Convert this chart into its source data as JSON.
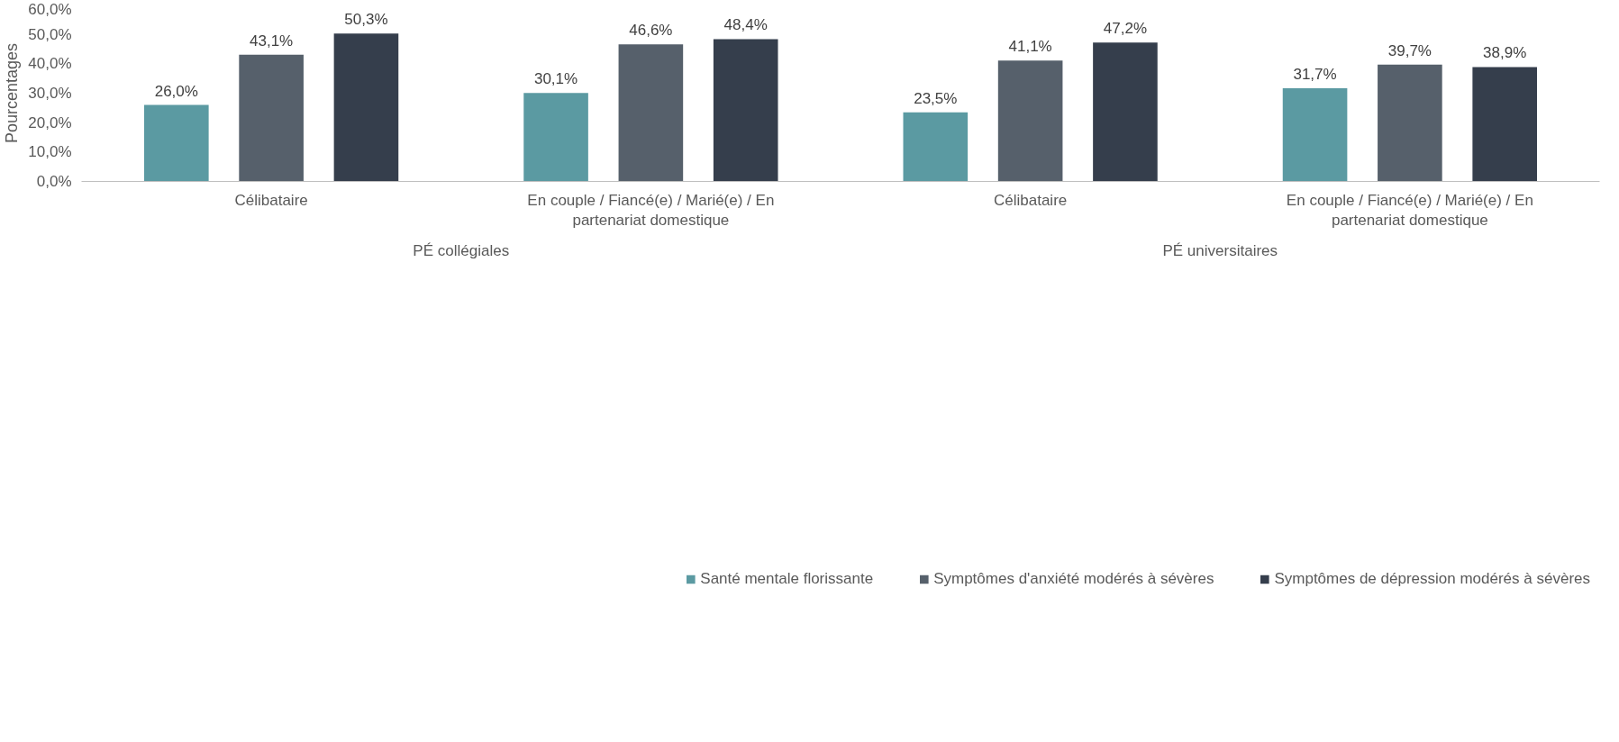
{
  "chart_data": {
    "type": "bar",
    "ylabel": "Pourcentages",
    "categories": [
      "Célibataire",
      "En couple / Fiancé(e) / Marié(e) / En partenariat domestique",
      "Célibataire",
      "En couple / Fiancé(e) / Marié(e) / En partenariat domestique"
    ],
    "annotations": [
      "PÉ collégiales",
      "PÉ universitaires"
    ],
    "series": [
      {
        "name": "Santé mentale florissante",
        "color": "#5b9aa2",
        "values": [
          26.0,
          30.1,
          23.5,
          31.7
        ],
        "value_labels": [
          "26,0%",
          "30,1%",
          "23,5%",
          "31,7%"
        ]
      },
      {
        "name": "Symptômes d'anxiété modérés à sévères",
        "color": "#56606b",
        "values": [
          43.1,
          46.6,
          41.1,
          39.7
        ],
        "value_labels": [
          "43,1%",
          "46,6%",
          "41,1%",
          "39,7%"
        ]
      },
      {
        "name": "Symptômes de dépression modérés à sévères",
        "color": "#353e4c",
        "values": [
          50.3,
          48.4,
          47.2,
          38.9
        ],
        "value_labels": [
          "50,3%",
          "48,4%",
          "47,2%",
          "38,9%"
        ]
      }
    ],
    "ylim": [
      0,
      60
    ],
    "yticks": [
      {
        "value": 0,
        "label": "0,0%"
      },
      {
        "value": 10,
        "label": "10,0%"
      },
      {
        "value": 20,
        "label": "20,0%"
      },
      {
        "value": 30,
        "label": "30,0%"
      },
      {
        "value": 40,
        "label": "40,0%"
      },
      {
        "value": 50,
        "label": "50,0%"
      },
      {
        "value": 60,
        "label": "60,0%"
      }
    ],
    "grid": false,
    "legend": "bottom"
  }
}
